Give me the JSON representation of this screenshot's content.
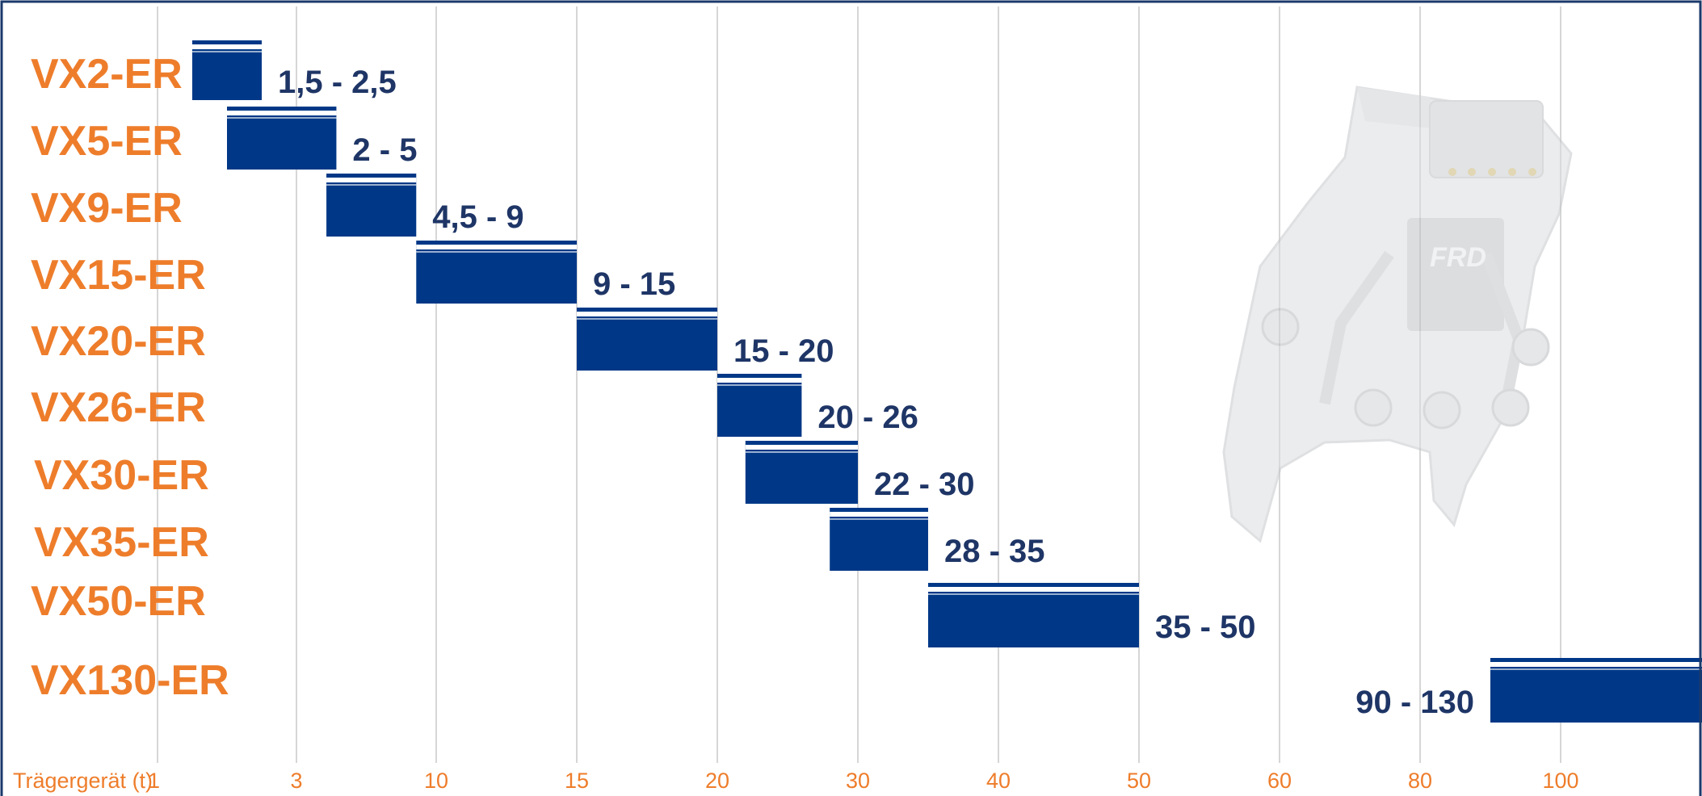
{
  "colors": {
    "bar": "#003887",
    "category_label": "#EE7D2B",
    "value_label": "#1E3566",
    "axis_label": "#EE7D2B",
    "gridline": "#D6D6D6",
    "frame": "#1B3A6B",
    "bar_stripe": "#FFFFFF"
  },
  "background_image": {
    "icon": "demolition-pulverizer-attachment",
    "logo_text": "FRD"
  },
  "chart_data": {
    "type": "bar",
    "orientation": "horizontal",
    "x_scale": "ordinal",
    "xlabel": "Trägergerät (t)",
    "x_ticks": [
      "1",
      "3",
      "10",
      "15",
      "20",
      "30",
      "40",
      "50",
      "60",
      "80",
      "100"
    ],
    "grid": true,
    "legend": "none",
    "categories": [
      "VX2-ER",
      "VX5-ER",
      "VX9-ER",
      "VX15-ER",
      "VX20-ER",
      "VX26-ER",
      "VX30-ER",
      "VX35-ER",
      "VX50-ER",
      "VX130-ER"
    ],
    "ranges": [
      {
        "min": 1.5,
        "max": 2.5,
        "label": "1,5 - 2,5"
      },
      {
        "min": 2,
        "max": 5,
        "label": "2 - 5"
      },
      {
        "min": 4.5,
        "max": 9,
        "label": "4,5 - 9"
      },
      {
        "min": 9,
        "max": 15,
        "label": "9 - 15"
      },
      {
        "min": 15,
        "max": 20,
        "label": "15 - 20"
      },
      {
        "min": 20,
        "max": 26,
        "label": "20 - 26"
      },
      {
        "min": 22,
        "max": 30,
        "label": "22 - 30"
      },
      {
        "min": 28,
        "max": 35,
        "label": "28 - 35"
      },
      {
        "min": 35,
        "max": 50,
        "label": "35 - 50"
      },
      {
        "min": 90,
        "max": 130,
        "label": "90 - 130"
      }
    ]
  }
}
